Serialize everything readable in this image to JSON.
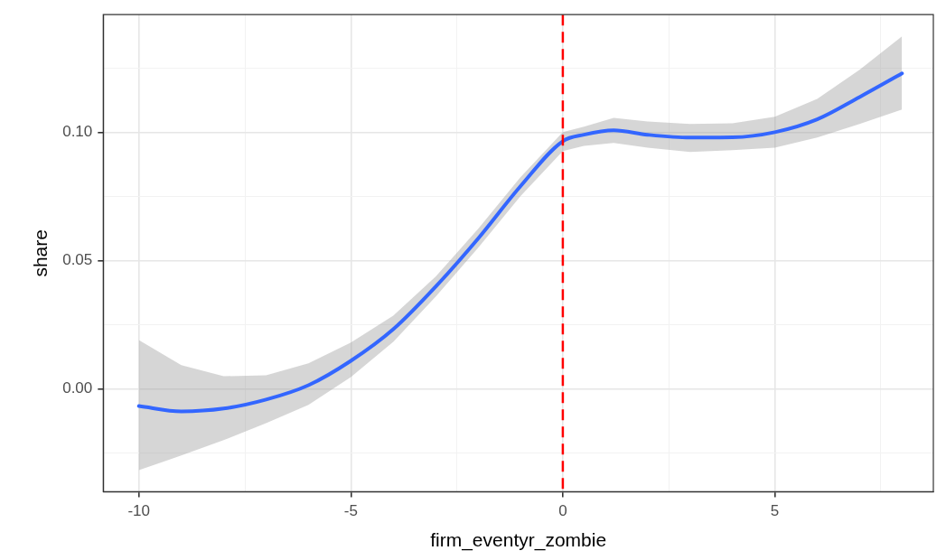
{
  "chart_data": {
    "type": "line",
    "xlabel": "firm_eventyr_zombie",
    "ylabel": "share",
    "xlim": [
      -10.84,
      8.74
    ],
    "ylim": [
      -0.0401,
      0.1458
    ],
    "xticks": [
      -10,
      {
        "value": -7.5,
        "label": null
      },
      -5,
      {
        "value": -2.5,
        "label": null
      },
      0,
      {
        "value": 2.5,
        "label": null
      },
      5,
      {
        "value": 7.5,
        "label": null
      }
    ],
    "yticks": [
      {
        "value": -0.025,
        "label": null
      },
      {
        "value": 0,
        "label": "0.00"
      },
      {
        "value": 0.025,
        "label": null
      },
      {
        "value": 0.05,
        "label": "0.05"
      },
      {
        "value": 0.075,
        "label": null
      },
      {
        "value": 0.1,
        "label": "0.10"
      },
      {
        "value": 0.125,
        "label": null
      }
    ],
    "grid": true,
    "legend": false,
    "marker": "none",
    "line_style": "solid",
    "series": [
      {
        "color": "#3366ff",
        "x": [
          -10,
          -9,
          -8,
          -7,
          -6,
          -5,
          -4,
          -3,
          -2,
          -1,
          0,
          0.5,
          1.2,
          2,
          3,
          4,
          5,
          6,
          7,
          8
        ],
        "values": [
          -0.0067,
          -0.0088,
          -0.0077,
          -0.0042,
          0.0014,
          0.0109,
          0.0232,
          0.0398,
          0.0585,
          0.0789,
          0.0965,
          0.099,
          0.1007,
          0.099,
          0.0979,
          0.098,
          0.1,
          0.105,
          0.1137,
          0.1229
        ],
        "lower": [
          -0.0317,
          -0.026,
          -0.02,
          -0.0134,
          -0.0063,
          0.0046,
          0.0183,
          0.0359,
          0.0549,
          0.075,
          0.0926,
          0.0947,
          0.0958,
          0.094,
          0.0923,
          0.093,
          0.094,
          0.0979,
          0.1032,
          0.1088
        ],
        "upper": [
          0.019,
          0.0092,
          0.0049,
          0.0053,
          0.0099,
          0.018,
          0.0285,
          0.0437,
          0.0623,
          0.0824,
          0.1,
          0.1021,
          0.1056,
          0.1042,
          0.1032,
          0.1035,
          0.106,
          0.113,
          0.1243,
          0.1373
        ]
      }
    ],
    "ref_lines": [
      {
        "axis": "x",
        "value": 0,
        "color": "#ff0000",
        "line_style": "dashed"
      }
    ]
  }
}
